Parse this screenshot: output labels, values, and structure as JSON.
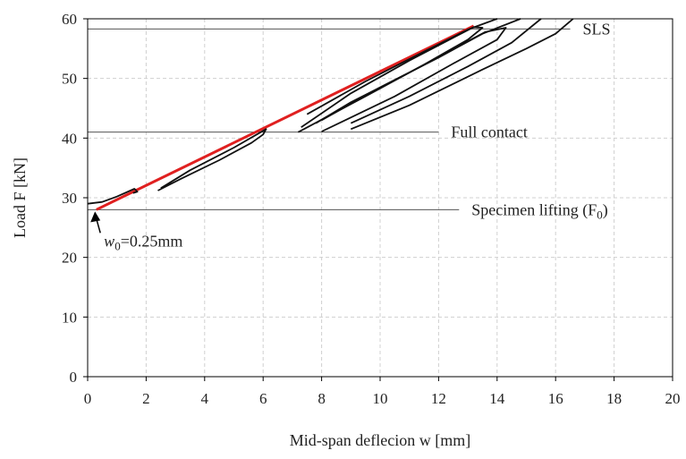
{
  "chart_data": {
    "type": "line",
    "xlabel": "Mid-span deflecion w [mm]",
    "ylabel": "Load F [kN]",
    "xlim": [
      0,
      20
    ],
    "ylim": [
      0,
      60
    ],
    "x_ticks": [
      "0",
      "2",
      "4",
      "6",
      "8",
      "10",
      "12",
      "14",
      "16",
      "18",
      "20"
    ],
    "y_ticks": [
      "0",
      "10",
      "20",
      "30",
      "40",
      "50",
      "60"
    ],
    "grid": true,
    "reference_lines": [
      {
        "name": "SLS",
        "label": "SLS",
        "y": 58.3,
        "x_range": [
          0,
          16.5
        ]
      },
      {
        "name": "Full contact",
        "label": "Full contact",
        "y": 41.0,
        "x_range": [
          0,
          12.0
        ]
      },
      {
        "name": "Specimen lifting",
        "label": "Specimen lifting (F",
        "label_sub": "0",
        "label_end": ")",
        "y": 28.0,
        "x_range": [
          0,
          12.7
        ]
      }
    ],
    "arrow_annotation": {
      "label": "w",
      "label_sub": "0",
      "label_rest": "=0.25mm",
      "x": 0.25,
      "y": 28.0
    },
    "series": [
      {
        "color": "#e02020",
        "points": [
          [
            0.3,
            28.0
          ],
          [
            13.2,
            58.8
          ]
        ]
      },
      {
        "color": "#111111",
        "points": [
          [
            0.0,
            29.0
          ],
          [
            0.5,
            29.3
          ],
          [
            1.0,
            30.2
          ],
          [
            1.6,
            31.5
          ],
          [
            1.7,
            31.0
          ],
          [
            1.55,
            30.8
          ]
        ]
      },
      {
        "color": "#111111",
        "points": [
          [
            2.4,
            31.2
          ],
          [
            3.2,
            33.2
          ],
          [
            4.5,
            36.3
          ],
          [
            5.6,
            39.2
          ],
          [
            6.0,
            40.6
          ],
          [
            6.1,
            41.5
          ],
          [
            5.0,
            38.4
          ],
          [
            3.5,
            34.6
          ],
          [
            2.5,
            31.6
          ]
        ]
      },
      {
        "color": "#111111",
        "points": [
          [
            7.2,
            41.0
          ],
          [
            9.5,
            47.0
          ],
          [
            11.5,
            52.3
          ],
          [
            13.0,
            56.5
          ],
          [
            13.5,
            58.5
          ],
          [
            13.2,
            58.6
          ],
          [
            11.0,
            53.0
          ],
          [
            9.0,
            47.5
          ],
          [
            7.3,
            41.8
          ]
        ]
      },
      {
        "color": "#111111",
        "points": [
          [
            8.0,
            41.1
          ],
          [
            10.5,
            47.0
          ],
          [
            12.5,
            52.5
          ],
          [
            14.0,
            56.5
          ],
          [
            14.3,
            58.5
          ],
          [
            13.6,
            57.8
          ],
          [
            11.0,
            51.0
          ],
          [
            9.0,
            46.0
          ],
          [
            7.8,
            42.5
          ]
        ]
      },
      {
        "color": "#111111",
        "points": [
          [
            9.0,
            41.5
          ],
          [
            11.0,
            45.5
          ],
          [
            13.5,
            51.5
          ],
          [
            15.0,
            55.0
          ],
          [
            16.0,
            57.5
          ],
          [
            16.6,
            60.0
          ]
        ]
      },
      {
        "color": "#111111",
        "points": [
          [
            9.0,
            42.5
          ],
          [
            11.0,
            47.0
          ],
          [
            13.0,
            52.0
          ],
          [
            14.5,
            56.0
          ],
          [
            15.5,
            60.0
          ]
        ]
      },
      {
        "color": "#111111",
        "points": [
          [
            8.0,
            43.0
          ],
          [
            10.0,
            48.5
          ],
          [
            12.0,
            53.5
          ],
          [
            13.5,
            57.5
          ],
          [
            14.8,
            60.0
          ]
        ]
      },
      {
        "color": "#111111",
        "points": [
          [
            7.5,
            44.0
          ],
          [
            9.5,
            49.5
          ],
          [
            11.5,
            54.5
          ],
          [
            13.0,
            58.2
          ],
          [
            14.0,
            60.0
          ]
        ]
      }
    ]
  }
}
